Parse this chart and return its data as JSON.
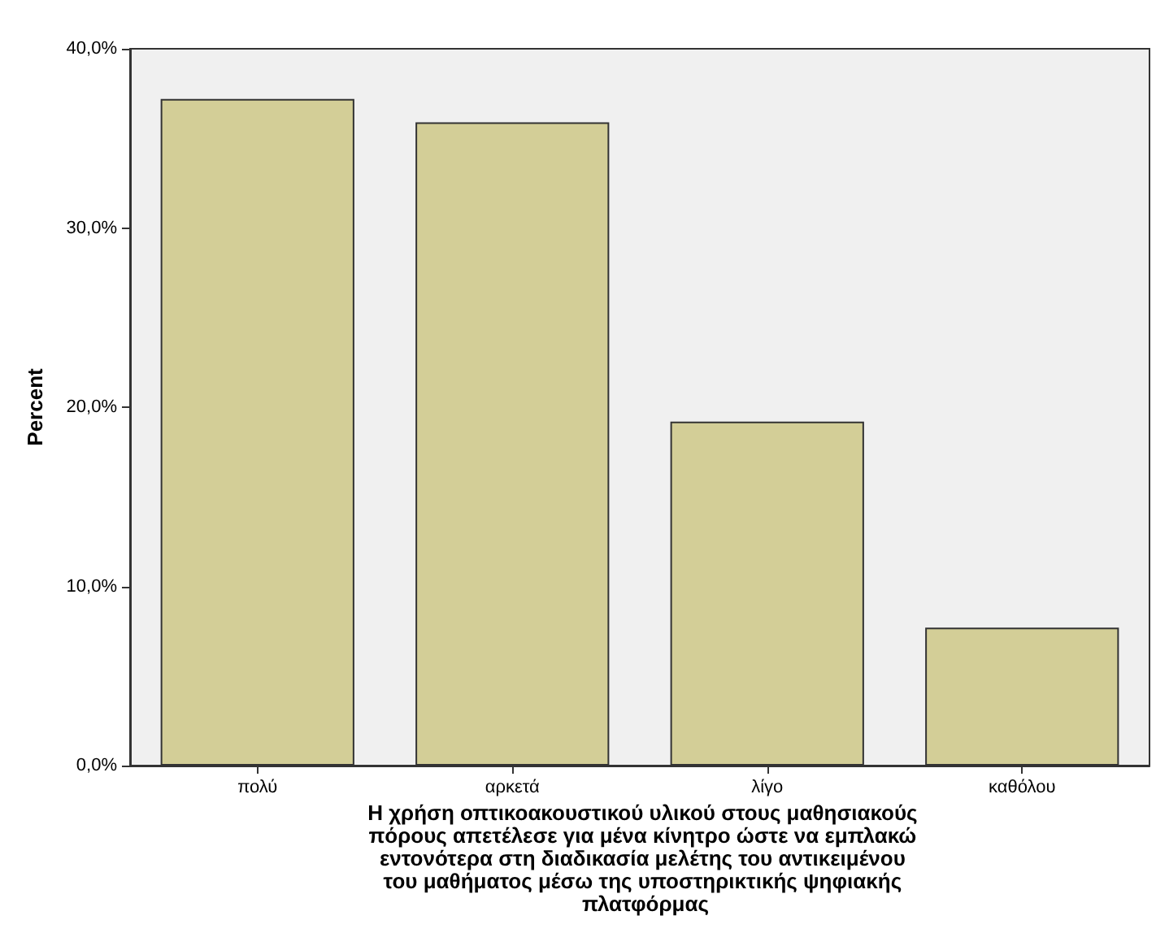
{
  "chart_data": {
    "type": "bar",
    "categories": [
      "πολύ",
      "αρκετά",
      "λίγο",
      "καθόλου"
    ],
    "values": [
      37.2,
      35.9,
      19.2,
      7.7
    ],
    "color": "#d3ce97",
    "xlabel": "Η χρήση οπτικοακουστικού υλικού στους μαθησιακούς πόρους απετέλεσε για μένα κίνητρο ώστε να εμπλακώ εντονότερα στη διαδικασία μελέτης του αντικειμένου του μαθήματος μέσω της υποστηρικτικής ψηφιακής πλατφόρμας",
    "ylabel": "Percent",
    "ylim": [
      0,
      40
    ],
    "yticks": [
      {
        "value": 0,
        "label": "0,0%"
      },
      {
        "value": 10,
        "label": "10,0%"
      },
      {
        "value": 20,
        "label": "20,0%"
      },
      {
        "value": 30,
        "label": "30,0%"
      },
      {
        "value": 40,
        "label": "40,0%"
      }
    ],
    "grid": false
  }
}
